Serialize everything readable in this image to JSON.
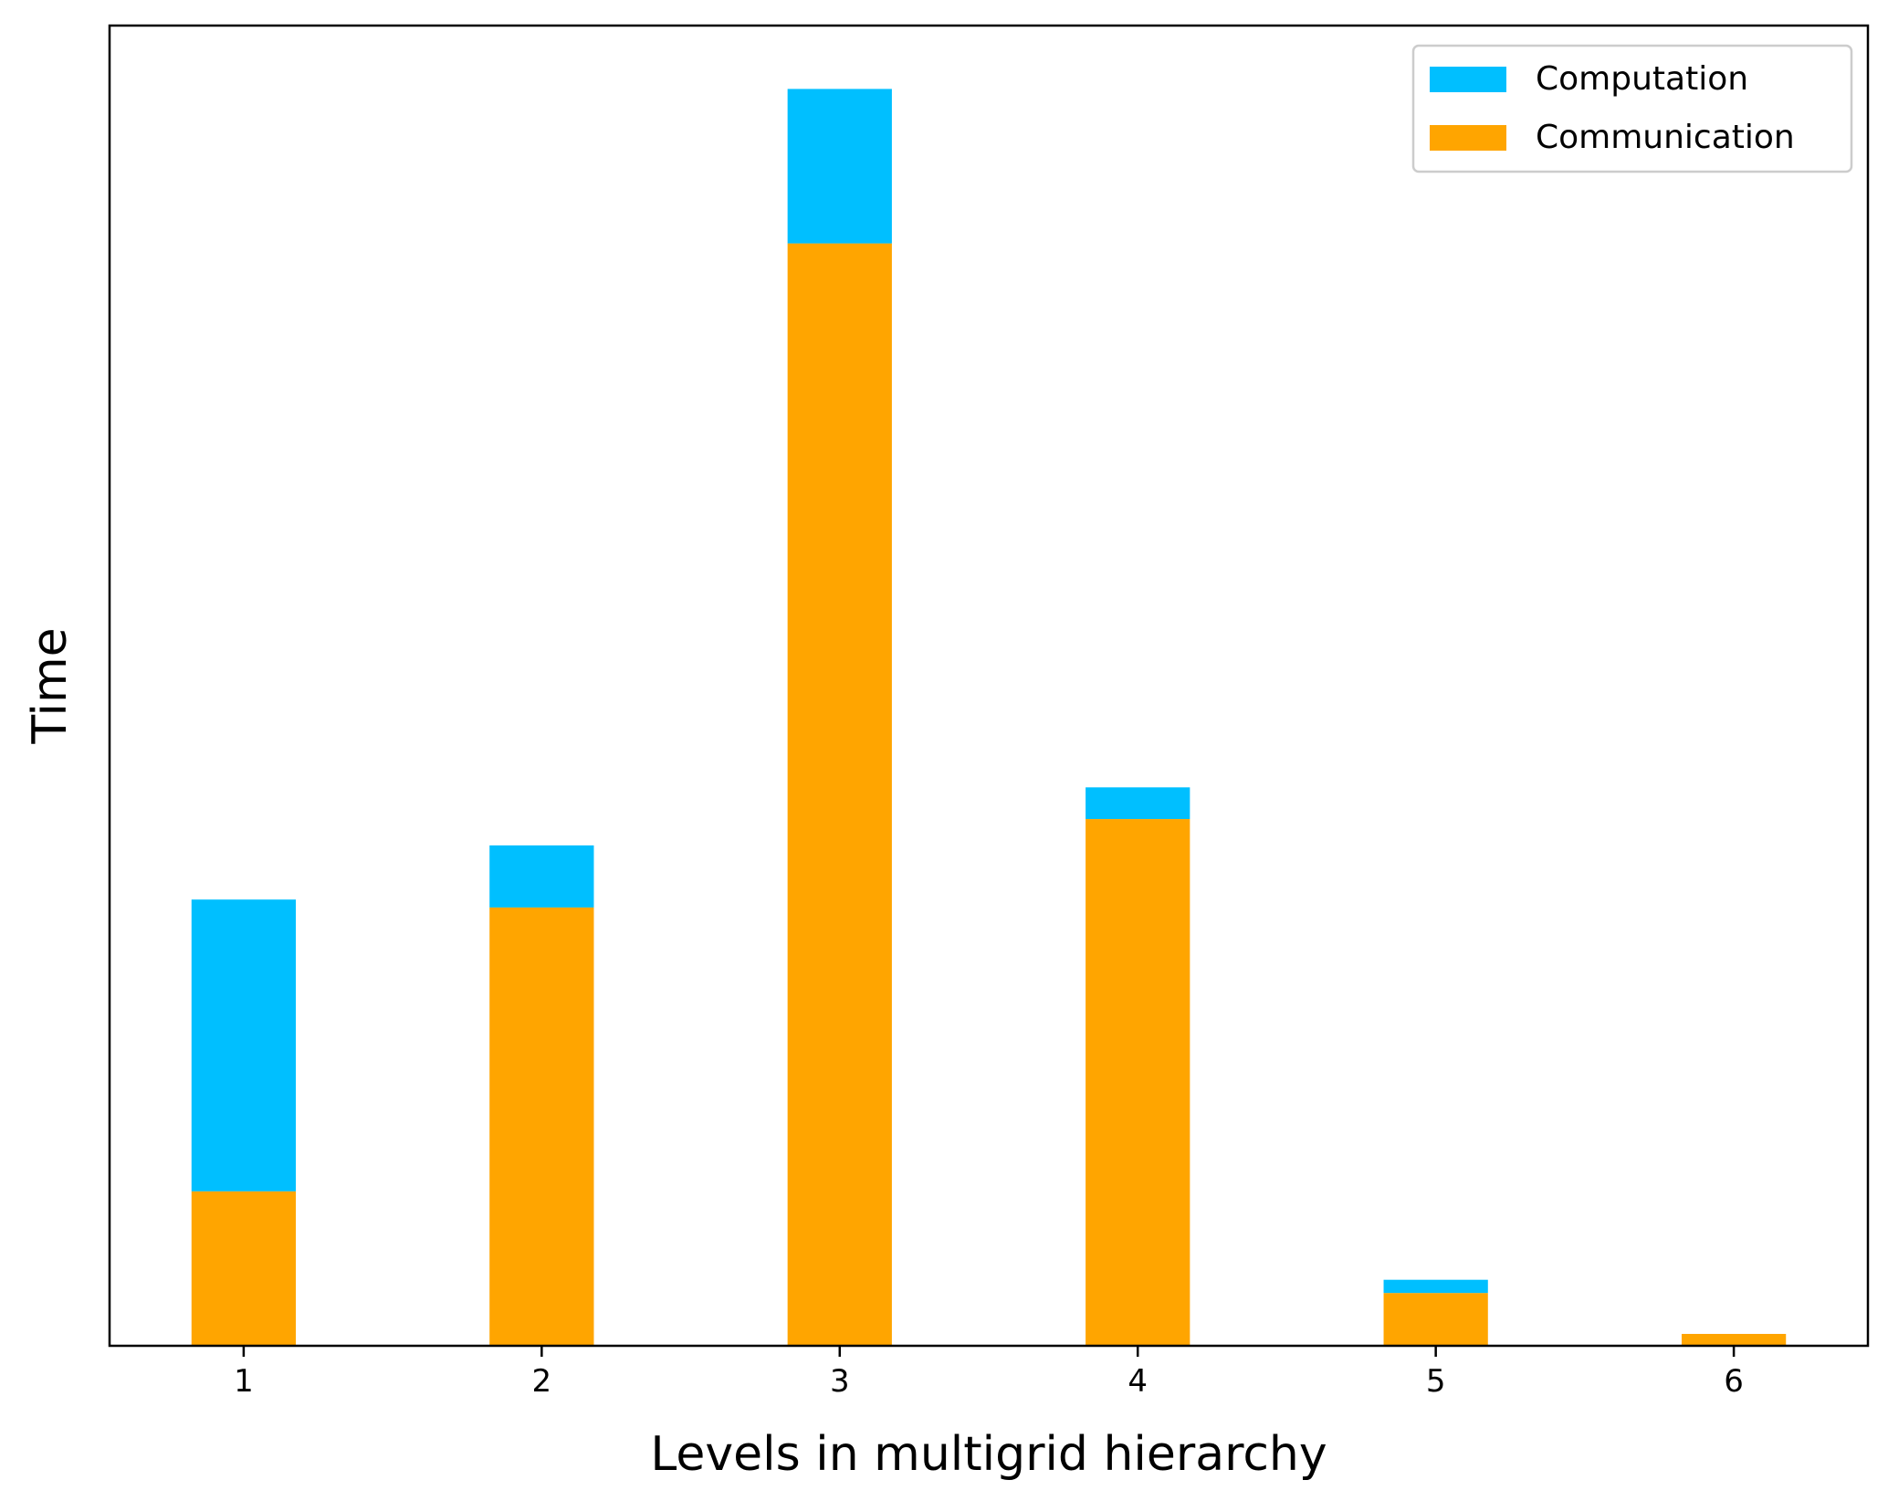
{
  "chart_data": {
    "type": "bar",
    "stacked": true,
    "title": "",
    "xlabel": "Levels in multigrid hierarchy",
    "ylabel": "Time",
    "categories": [
      "1",
      "2",
      "3",
      "4",
      "5",
      "6"
    ],
    "series": [
      {
        "name": "Communication",
        "color": "#ffa500",
        "values": [
          0.117,
          0.332,
          0.835,
          0.399,
          0.04,
          0.009
        ]
      },
      {
        "name": "Computation",
        "color": "#00bfff",
        "values": [
          0.221,
          0.047,
          0.117,
          0.024,
          0.01,
          0.0
        ]
      }
    ],
    "ylim": [
      0,
      1.0
    ],
    "y_tick_labels_shown": false,
    "grid": false,
    "legend_position": "upper right",
    "legend_order": [
      "Computation",
      "Communication"
    ]
  }
}
